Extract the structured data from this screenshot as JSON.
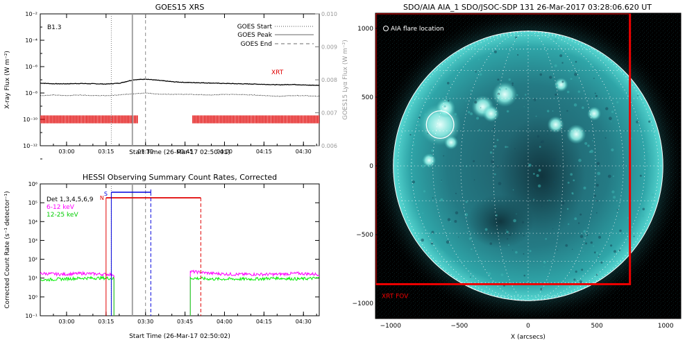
{
  "chart_data": [
    {
      "type": "line",
      "title": "GOES15 XRS",
      "xlabel": "Start Time (26-Mar-17 02:50:01)",
      "ylabel": "X-ray Flux (W m⁻²)",
      "ylabel_right": "GOES15 Lyα Flux (W m⁻²)",
      "x_ticks": [
        "03:00",
        "03:15",
        "03:30",
        "03:45",
        "04:00",
        "04:15",
        "04:30"
      ],
      "x_tick_minutes": [
        10,
        25,
        40,
        55,
        70,
        85,
        100
      ],
      "xlim_minutes": [
        0,
        106
      ],
      "y_ticks": [
        "10⁻²",
        "10⁻⁴",
        "10⁻⁶",
        "10⁻⁸",
        "10⁻¹⁰",
        "10⁻¹²"
      ],
      "ylim_log10": [
        -12,
        -2
      ],
      "y_right_ticks": [
        "0.010",
        "0.009",
        "0.008",
        "0.007",
        "0.006"
      ],
      "ylim_right": [
        0.006,
        0.01
      ],
      "goes_class": "B1.3",
      "legend": [
        "GOES Start",
        "GOES Peak",
        "GOES End"
      ],
      "goes_start_min": 27,
      "goes_peak_min": 35,
      "goes_end_min": 40,
      "xrt_label": "XRT",
      "xrt_intervals_min": [
        [
          0,
          37
        ],
        [
          58,
          106
        ]
      ],
      "series": [
        {
          "name": "lyman_alpha_solid",
          "values_log10": [
            -7.25,
            -7.3,
            -7.3,
            -7.28,
            -7.3,
            -7.32,
            -7.25,
            -7.0,
            -6.95,
            -7.05,
            -7.15,
            -7.2,
            -7.22,
            -7.25,
            -7.28,
            -7.3,
            -7.32,
            -7.35,
            -7.38,
            -7.35,
            -7.4,
            -7.42
          ]
        },
        {
          "name": "xray_dotted",
          "values_log10": [
            -8.2,
            -8.15,
            -8.2,
            -8.15,
            -8.2,
            -8.2,
            -8.15,
            -8.05,
            -8.0,
            -8.1,
            -8.1,
            -8.1,
            -8.12,
            -8.15,
            -8.1,
            -8.12,
            -8.15,
            -8.2,
            -8.25,
            -8.2,
            -8.2,
            -8.25
          ]
        }
      ]
    },
    {
      "type": "line",
      "title": "HESSI Observing Summary Count Rates, Corrected",
      "xlabel": "Start Time (26-Mar-17 02:50:02)",
      "ylabel": "Corrected Count Rate (s⁻¹ detector⁻¹)",
      "x_ticks": [
        "03:00",
        "03:15",
        "03:30",
        "03:45",
        "04:00",
        "04:15",
        "04:30"
      ],
      "x_tick_minutes": [
        10,
        25,
        40,
        55,
        70,
        85,
        100
      ],
      "xlim_minutes": [
        0,
        106
      ],
      "y_ticks": [
        "10⁶",
        "10⁵",
        "10⁴",
        "10³",
        "10²",
        "10¹",
        "10⁰",
        "10⁻¹"
      ],
      "ylim_log10": [
        -1,
        6
      ],
      "legend": [
        "Det 1,3,4,5,6,9",
        "6-12 keV",
        "12-25 keV"
      ],
      "night_label": "N",
      "saa_label": "S",
      "night_start_min": 25,
      "night_end_min": 61,
      "saa_start_min": 27,
      "saa_end_min": 42,
      "goes_start_min": 27,
      "goes_peak_min": 35,
      "goes_end_min": 40,
      "data_gap_min": [
        28,
        57
      ],
      "series": [
        {
          "name": "6-12 keV",
          "color": "#ff00ff",
          "values_log10": [
            1.25,
            1.2,
            1.25,
            1.2,
            1.2,
            1.2,
            1.4,
            1.35,
            1.25,
            1.2,
            1.2,
            1.2,
            1.25,
            1.2
          ]
        },
        {
          "name": "12-25 keV",
          "color": "#00ee00",
          "values_log10": [
            0.9,
            0.95,
            1.0,
            1.0,
            0.95,
            0.95,
            1.05,
            1.0,
            0.95,
            0.95,
            0.95,
            1.0,
            0.95,
            1.0
          ]
        }
      ]
    },
    {
      "type": "scatter",
      "title": "SDO/AIA AIA_1 SDO/JSOC-SDP 131 26-Mar-2017 03:28:06.620 UT",
      "xlabel": "X (arcsecs)",
      "ylabel": "",
      "x_ticks": [
        "−1000",
        "−500",
        "0",
        "500",
        "1000"
      ],
      "y_ticks": [
        "1000",
        "500",
        "0",
        "−500",
        "−1000"
      ],
      "xlim": [
        -1110,
        1110
      ],
      "ylim": [
        -1110,
        1110
      ],
      "legend": [
        "AIA flare location"
      ],
      "flare_location": {
        "x": -640,
        "y": 300,
        "radius": 100
      },
      "solar_radius": 980,
      "xrt_label": "XRT FOV",
      "xrt_fov": {
        "x_min": -1110,
        "x_max": 740,
        "y_min": -860,
        "y_max": 1110
      }
    }
  ]
}
